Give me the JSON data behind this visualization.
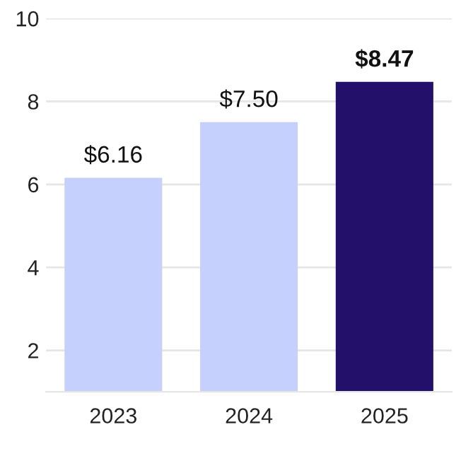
{
  "chart_data": {
    "type": "bar",
    "categories": [
      "2023",
      "2024",
      "2025"
    ],
    "values": [
      6.16,
      7.5,
      8.47
    ],
    "colors": [
      "#c5d0fc",
      "#c5d0fc",
      "#23106b"
    ],
    "value_labels": [
      "$6.16",
      "$7.50",
      "$8.47"
    ],
    "ylim": [
      1,
      10
    ],
    "yticks": [
      2,
      4,
      6,
      8,
      10
    ],
    "grid": "y"
  }
}
